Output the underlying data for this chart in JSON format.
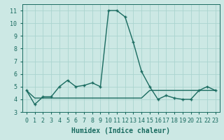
{
  "xlabel": "Humidex (Indice chaleur)",
  "background_color": "#cce8e4",
  "grid_color": "#aad4cf",
  "line_color": "#1a6b60",
  "x_line1": [
    0,
    1,
    2,
    3,
    4,
    5,
    6,
    7,
    8,
    9,
    10,
    11,
    12,
    13,
    14,
    15,
    16,
    17,
    18,
    19,
    20,
    21,
    22,
    23
  ],
  "y_line1": [
    4.7,
    3.6,
    4.2,
    4.2,
    5.0,
    5.5,
    5.0,
    5.1,
    5.3,
    5.0,
    11.0,
    11.0,
    10.5,
    8.5,
    6.2,
    5.0,
    4.0,
    4.3,
    4.1,
    4.0,
    4.0,
    4.7,
    5.0,
    4.7
  ],
  "x_line2": [
    0,
    1,
    2,
    3,
    4,
    5,
    6,
    7,
    8,
    9,
    10,
    11,
    12,
    13,
    14,
    15,
    16,
    17,
    18,
    19,
    20,
    21,
    22,
    23
  ],
  "y_line2": [
    4.7,
    4.1,
    4.1,
    4.1,
    4.1,
    4.1,
    4.1,
    4.1,
    4.1,
    4.1,
    4.1,
    4.1,
    4.1,
    4.1,
    4.1,
    4.7,
    4.7,
    4.7,
    4.7,
    4.7,
    4.7,
    4.7,
    4.7,
    4.7
  ],
  "ylim": [
    3,
    11.5
  ],
  "xlim": [
    -0.5,
    23.5
  ],
  "yticks": [
    3,
    4,
    5,
    6,
    7,
    8,
    9,
    10,
    11
  ],
  "xticks": [
    0,
    1,
    2,
    3,
    4,
    5,
    6,
    7,
    8,
    9,
    10,
    11,
    12,
    13,
    14,
    15,
    16,
    17,
    18,
    19,
    20,
    21,
    22,
    23
  ],
  "xtick_labels": [
    "0",
    "1",
    "2",
    "3",
    "4",
    "5",
    "6",
    "7",
    "8",
    "9",
    "10",
    "11",
    "12",
    "13",
    "14",
    "15",
    "16",
    "17",
    "18",
    "19",
    "20",
    "21",
    "22",
    "23"
  ],
  "fontsize_tick": 6,
  "fontsize_label": 7
}
